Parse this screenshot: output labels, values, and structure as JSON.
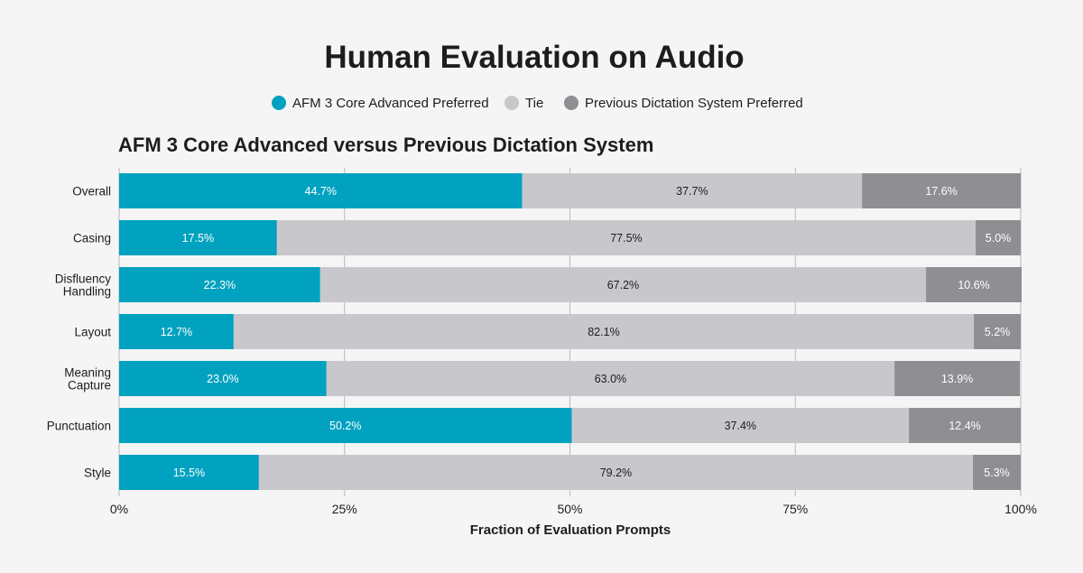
{
  "chart_data": {
    "type": "bar",
    "orientation": "horizontal",
    "stacked": true,
    "title": "Human Evaluation on Audio",
    "subtitle": "AFM 3 Core Advanced versus Previous Dictation System",
    "xlabel": "Fraction of Evaluation Prompts",
    "ylabel": "",
    "xlim": [
      0,
      100
    ],
    "x_ticks": [
      "0%",
      "25%",
      "50%",
      "75%",
      "100%"
    ],
    "legend_position": "top",
    "grid": true,
    "categories": [
      [
        "Overall"
      ],
      [
        "Casing"
      ],
      [
        "Disfluency",
        "Handling"
      ],
      [
        "Layout"
      ],
      [
        "Meaning",
        "Capture"
      ],
      [
        "Punctuation"
      ],
      [
        "Style"
      ]
    ],
    "series": [
      {
        "name": "AFM 3 Core Advanced Preferred",
        "color": "#00a2bf",
        "label_color": "#ffffff",
        "values": [
          44.7,
          17.5,
          22.3,
          12.7,
          23.0,
          50.2,
          15.5
        ],
        "labels": [
          "44.7%",
          "17.5%",
          "22.3%",
          "12.7%",
          "23.0%",
          "50.2%",
          "15.5%"
        ]
      },
      {
        "name": "Tie",
        "color": "#c8c8cc",
        "label_color": "#1d1d1f",
        "values": [
          37.7,
          77.5,
          67.2,
          82.1,
          63.0,
          37.4,
          79.2
        ],
        "labels": [
          "37.7%",
          "77.5%",
          "67.2%",
          "82.1%",
          "63.0%",
          "37.4%",
          "79.2%"
        ]
      },
      {
        "name": "Previous Dictation System Preferred",
        "color": "#8e8e93",
        "label_color": "#ffffff",
        "values": [
          17.6,
          5.0,
          10.6,
          5.2,
          13.9,
          12.4,
          5.3
        ],
        "labels": [
          "17.6%",
          "5.0%",
          "10.6%",
          "5.2%",
          "13.9%",
          "12.4%",
          "5.3%"
        ]
      }
    ]
  }
}
